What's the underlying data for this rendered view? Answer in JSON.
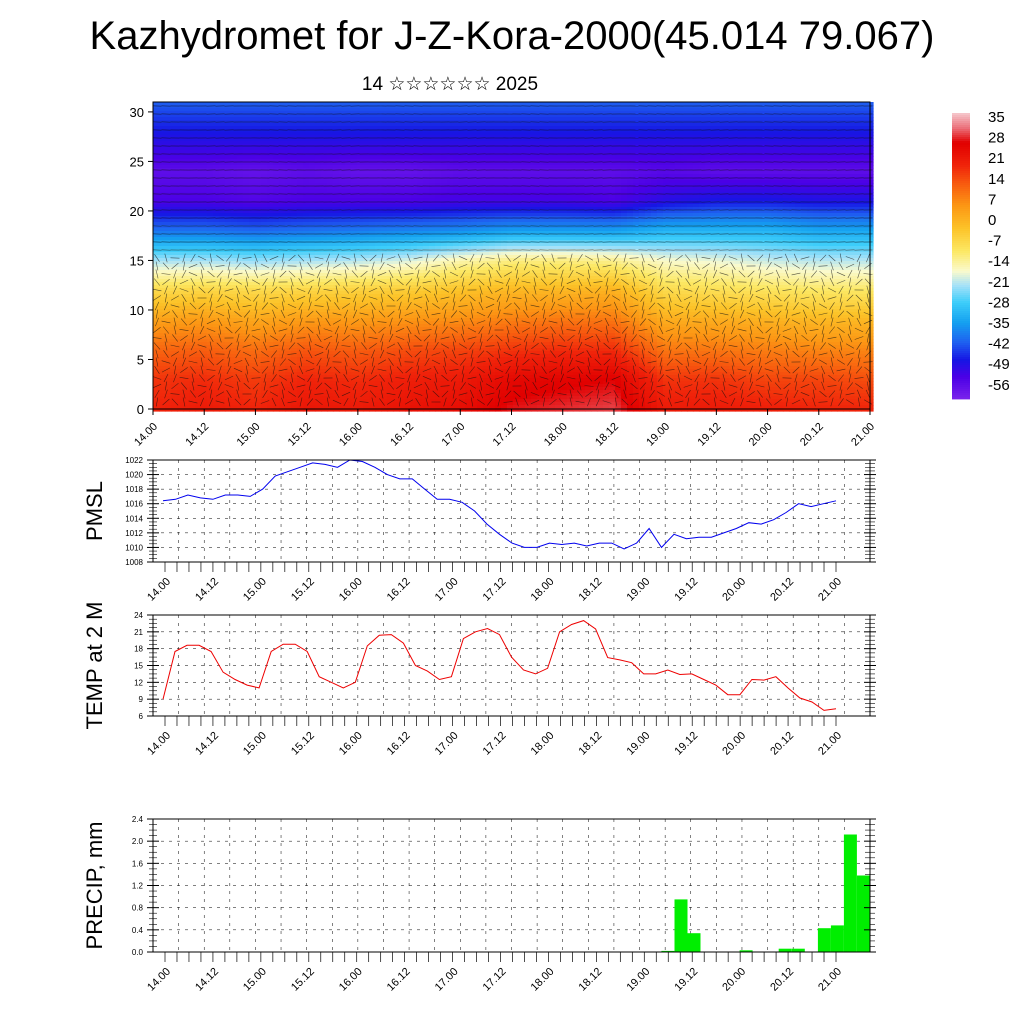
{
  "title": "Kazhydromet for J-Z-Kora-2000(45.014 79.067)",
  "subtitle": "14 ☆☆☆☆☆☆ 2025",
  "chart_data": [
    {
      "type": "heatmap",
      "title": "",
      "xlabel": "",
      "ylabel": "",
      "x_tick_labels": [
        "14.00",
        "14.12",
        "15.00",
        "15.12",
        "16.00",
        "16.12",
        "17.00",
        "17.12",
        "18.00",
        "18.12",
        "19.00",
        "19.12",
        "20.00",
        "20.12",
        "21.00"
      ],
      "y_ticks": [
        0,
        5,
        10,
        15,
        20,
        25,
        30
      ],
      "ylim": [
        0,
        31
      ],
      "colorbar": {
        "labels": [
          "35",
          "28",
          "21",
          "14",
          "7",
          "0",
          "-7",
          "-14",
          "-21",
          "-28",
          "-35",
          "-42",
          "-49",
          "-56"
        ],
        "range": [
          -60,
          40
        ]
      },
      "profile_levels": [
        0,
        3,
        6,
        9,
        12,
        15,
        18,
        21,
        24,
        27,
        31
      ],
      "profile_times": [
        0,
        1,
        2,
        3,
        4,
        5,
        6,
        7,
        8,
        9,
        10,
        11,
        12,
        13,
        14
      ],
      "temperature_profile": [
        [
          22,
          20,
          14,
          6,
          -5,
          -20,
          -38,
          -52,
          -55,
          -48,
          -40
        ],
        [
          24,
          21,
          15,
          7,
          -4,
          -20,
          -38,
          -52,
          -55,
          -48,
          -40
        ],
        [
          22,
          19,
          13,
          5,
          -5,
          -21,
          -39,
          -53,
          -56,
          -48,
          -40
        ],
        [
          25,
          22,
          16,
          7,
          -4,
          -20,
          -38,
          -52,
          -55,
          -48,
          -40
        ],
        [
          24,
          21,
          15,
          7,
          -3,
          -19,
          -37,
          -52,
          -56,
          -48,
          -40
        ],
        [
          26,
          23,
          17,
          8,
          -2,
          -17,
          -36,
          -52,
          -56,
          -48,
          -40
        ],
        [
          27,
          24,
          18,
          9,
          0,
          -13,
          -35,
          -51,
          -55,
          -48,
          -40
        ],
        [
          31,
          28,
          20,
          11,
          2,
          -10,
          -33,
          -51,
          -55,
          -48,
          -40
        ],
        [
          32,
          29,
          21,
          12,
          2,
          -10,
          -33,
          -51,
          -55,
          -48,
          -40
        ],
        [
          33,
          30,
          21,
          12,
          3,
          -11,
          -33,
          -52,
          -55,
          -48,
          -40
        ],
        [
          24,
          20,
          12,
          4,
          -5,
          -15,
          -30,
          -48,
          -54,
          -48,
          -40
        ],
        [
          24,
          20,
          12,
          4,
          -6,
          -16,
          -30,
          -46,
          -55,
          -48,
          -40
        ],
        [
          23,
          18,
          11,
          3,
          -7,
          -18,
          -30,
          -46,
          -55,
          -48,
          -40
        ],
        [
          22,
          18,
          10,
          2,
          -8,
          -19,
          -32,
          -47,
          -55,
          -48,
          -40
        ],
        [
          22,
          17,
          10,
          2,
          -8,
          -19,
          -32,
          -47,
          -55,
          -48,
          -40
        ]
      ]
    },
    {
      "type": "line",
      "ylabel": "PMSL",
      "ylim": [
        1008,
        1022
      ],
      "y_ticks": [
        1008,
        1010,
        1012,
        1014,
        1016,
        1018,
        1020,
        1022
      ],
      "x_tick_labels": [
        "14.00",
        "14.12",
        "15.00",
        "15.12",
        "16.00",
        "16.12",
        "17.00",
        "17.12",
        "18.00",
        "18.12",
        "19.00",
        "19.12",
        "20.00",
        "20.12",
        "21.00"
      ],
      "color": "#0000ee",
      "values": [
        1016.4,
        1016.6,
        1017.2,
        1016.8,
        1016.6,
        1017.2,
        1017.2,
        1017.0,
        1018.0,
        1019.8,
        1020.4,
        1021.0,
        1021.6,
        1021.4,
        1021.0,
        1022.0,
        1021.8,
        1021.0,
        1020.0,
        1019.4,
        1019.4,
        1018.0,
        1016.6,
        1016.6,
        1016.2,
        1015.0,
        1013.2,
        1011.8,
        1010.6,
        1010.0,
        1010.0,
        1010.6,
        1010.4,
        1010.6,
        1010.2,
        1010.6,
        1010.6,
        1009.8,
        1010.6,
        1012.6,
        1010.0,
        1011.8,
        1011.2,
        1011.4,
        1011.4,
        1012.0,
        1012.6,
        1013.4,
        1013.2,
        1013.8,
        1014.8,
        1016.0,
        1015.6,
        1016.0,
        1016.4
      ]
    },
    {
      "type": "line",
      "ylabel": "TEMP at 2 M",
      "ylim": [
        6,
        24
      ],
      "y_ticks": [
        6,
        9,
        12,
        15,
        18,
        21,
        24
      ],
      "x_tick_labels": [
        "14.00",
        "14.12",
        "15.00",
        "15.12",
        "16.00",
        "16.12",
        "17.00",
        "17.12",
        "18.00",
        "18.12",
        "19.00",
        "19.12",
        "20.00",
        "20.12",
        "21.00"
      ],
      "color": "#ee0000",
      "values": [
        9.0,
        17.5,
        18.6,
        18.6,
        17.5,
        13.8,
        12.5,
        11.5,
        11.0,
        17.5,
        18.8,
        18.8,
        17.5,
        13.0,
        12.0,
        11.0,
        12.0,
        18.5,
        20.4,
        20.5,
        19.0,
        15.0,
        14.0,
        12.5,
        13.0,
        19.8,
        21.0,
        21.6,
        20.5,
        16.5,
        14.2,
        13.5,
        14.5,
        21.0,
        22.3,
        23.0,
        21.5,
        16.4,
        16.0,
        15.5,
        13.5,
        13.5,
        14.2,
        13.4,
        13.5,
        12.5,
        11.5,
        9.8,
        9.8,
        12.5,
        12.4,
        13.0,
        11.0,
        9.2,
        8.5,
        7.0,
        7.3
      ]
    },
    {
      "type": "bar",
      "ylabel": "PRECIP, mm",
      "ylim": [
        0,
        2.4
      ],
      "y_ticks": [
        "0.0",
        "0.4",
        "0.8",
        "1.2",
        "1.6",
        "2.0",
        "2.4"
      ],
      "x_tick_labels": [
        "14.00",
        "14.12",
        "15.00",
        "15.12",
        "16.00",
        "16.12",
        "17.00",
        "17.12",
        "18.00",
        "18.12",
        "19.00",
        "19.12",
        "20.00",
        "20.12",
        "21.00"
      ],
      "color": "#00ee00",
      "values": [
        0,
        0,
        0,
        0,
        0,
        0,
        0,
        0,
        0,
        0,
        0,
        0,
        0,
        0,
        0,
        0,
        0,
        0,
        0,
        0,
        0,
        0,
        0,
        0,
        0,
        0,
        0,
        0,
        0,
        0,
        0,
        0,
        0,
        0,
        0,
        0,
        0,
        0,
        0,
        0.02,
        0.95,
        0.34,
        0,
        0,
        0,
        0.03,
        0,
        0,
        0.06,
        0.06,
        0,
        0.43,
        0.48,
        2.12,
        1.38
      ]
    }
  ]
}
